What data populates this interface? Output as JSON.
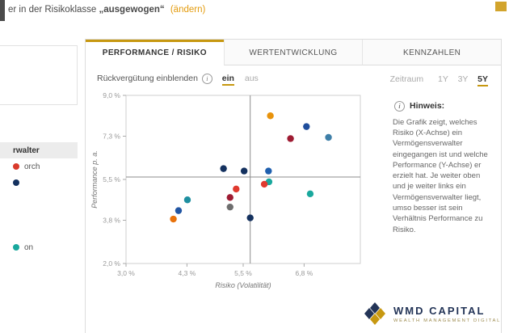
{
  "header": {
    "prefix": "er in der Risikoklasse ",
    "risk": "„ausgewogen“",
    "link": "(ändern)"
  },
  "sidebar": {
    "items": [
      {
        "label": "",
        "dot": null,
        "active": false
      },
      {
        "label": "rwalter",
        "dot": null,
        "active": true
      },
      {
        "label": "orch",
        "dot": "#d93a2b",
        "active": false
      },
      {
        "label": "",
        "dot": "#14315f",
        "active": false
      },
      {
        "label": "",
        "dot": null,
        "active": false
      },
      {
        "label": "",
        "dot": null,
        "active": false
      },
      {
        "label": "",
        "dot": null,
        "active": false
      },
      {
        "label": "on",
        "dot": "#19a89d",
        "active": false
      }
    ]
  },
  "tabs": [
    {
      "label": "PERFORMANCE / RISIKO",
      "active": true
    },
    {
      "label": "WERTENTWICKLUNG",
      "active": false
    },
    {
      "label": "KENNZAHLEN",
      "active": false
    }
  ],
  "controls": {
    "rebate_label": "Rückvergütung einblenden",
    "on_label": "ein",
    "off_label": "aus",
    "period_label": "Zeitraum",
    "periods": [
      "1Y",
      "3Y",
      "5Y"
    ],
    "active_period": "5Y",
    "info_glyph": "i"
  },
  "chart_data": {
    "type": "scatter",
    "title": "",
    "xlabel": "Risiko (Volatilität)",
    "ylabel": "Performance p. a.",
    "xlim": [
      3.0,
      8.0
    ],
    "ylim": [
      2.0,
      9.0
    ],
    "grid": false,
    "x_ticks": [
      {
        "value": 3.0,
        "label": "3,0 %"
      },
      {
        "value": 4.3,
        "label": "4,3 %"
      },
      {
        "value": 5.5,
        "label": "5,5 %"
      },
      {
        "value": 6.8,
        "label": "6,8 %"
      }
    ],
    "y_ticks": [
      {
        "value": 2.0,
        "label": "2,0 %"
      },
      {
        "value": 3.8,
        "label": "3,8 %"
      },
      {
        "value": 5.5,
        "label": "5,5 %"
      },
      {
        "value": 7.3,
        "label": "7,3 %"
      },
      {
        "value": 9.0,
        "label": "9,0 %"
      }
    ],
    "average_lines": {
      "x": 5.65,
      "y": 5.6
    },
    "points": [
      {
        "x": 6.08,
        "y": 8.15,
        "color": "#e8930c"
      },
      {
        "x": 6.85,
        "y": 7.7,
        "color": "#1f4e9c"
      },
      {
        "x": 7.32,
        "y": 7.25,
        "color": "#3e7fa8"
      },
      {
        "x": 6.51,
        "y": 7.2,
        "color": "#9e1b32"
      },
      {
        "x": 5.08,
        "y": 5.95,
        "color": "#14315f"
      },
      {
        "x": 5.52,
        "y": 5.85,
        "color": "#14315f"
      },
      {
        "x": 6.04,
        "y": 5.85,
        "color": "#1f5fae"
      },
      {
        "x": 6.05,
        "y": 5.4,
        "color": "#19a89d"
      },
      {
        "x": 5.95,
        "y": 5.3,
        "color": "#e03a2f"
      },
      {
        "x": 5.35,
        "y": 5.1,
        "color": "#e03a2f"
      },
      {
        "x": 5.22,
        "y": 4.75,
        "color": "#9e1b32"
      },
      {
        "x": 6.93,
        "y": 4.9,
        "color": "#19a89d"
      },
      {
        "x": 4.31,
        "y": 4.65,
        "color": "#1e8fa0"
      },
      {
        "x": 5.22,
        "y": 4.35,
        "color": "#6e6e6e"
      },
      {
        "x": 4.12,
        "y": 4.2,
        "color": "#2155a3"
      },
      {
        "x": 4.01,
        "y": 3.85,
        "color": "#e8720c"
      },
      {
        "x": 5.65,
        "y": 3.9,
        "color": "#14315f"
      }
    ]
  },
  "hinweis": {
    "title": "Hinweis:",
    "text": "Die Grafik zeigt, welches Risiko (X-Achse) ein Vermögensverwalter eingegangen ist und welche Performance (Y-Achse) er erzielt hat. Je weiter oben und je weiter links ein Vermögensverwalter liegt, umso besser ist sein Verhältnis Performance zu Risiko."
  },
  "logo": {
    "name": "WMD CAPITAL",
    "tagline": "WEALTH MANAGEMENT DIGITAL"
  },
  "colors": {
    "accent_gold": "#c79810",
    "link_orange": "#e39b0d",
    "navy": "#233457"
  }
}
